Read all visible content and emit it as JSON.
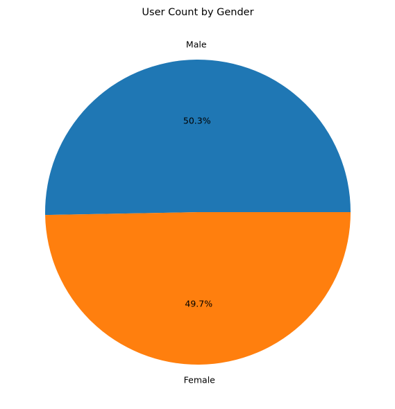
{
  "chart_data": {
    "type": "pie",
    "title": "User Count by Gender",
    "categories": [
      "Male",
      "Female"
    ],
    "values": [
      50.3,
      49.7
    ],
    "percent_labels": [
      "50.3%",
      "49.7%"
    ],
    "colors": [
      "#1f77b4",
      "#ff7f0e"
    ],
    "start_angle_deg": 0,
    "direction": "counterclockwise",
    "legend": "none"
  }
}
